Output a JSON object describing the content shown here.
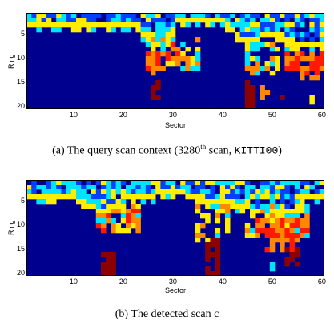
{
  "chart_data": [
    {
      "type": "heatmap",
      "xlabel": "Sector",
      "ylabel": "Ring",
      "xticks": [
        10,
        20,
        30,
        40,
        50,
        60
      ],
      "yticks": [
        5,
        10,
        15,
        20
      ],
      "xlim": [
        1,
        60
      ],
      "ylim": [
        1,
        20
      ],
      "colormap": "jet",
      "grid": false,
      "description": "Query scan context: yellow band near rings 2-5 with dips, red/orange blocks near sectors 26, 44, 55-60"
    },
    {
      "type": "heatmap",
      "xlabel": "Sector",
      "ylabel": "Ring",
      "xticks": [
        10,
        20,
        30,
        40,
        50,
        60
      ],
      "yticks": [
        5,
        10,
        15,
        20
      ],
      "xlim": [
        1,
        60
      ],
      "ylim": [
        1,
        20
      ],
      "colormap": "jet",
      "grid": false
    }
  ],
  "captions": {
    "a_prefix": "(a) The query scan context (3280",
    "a_sup": "th",
    "a_mid": " scan, ",
    "a_code": "KITTI00",
    "a_suffix": ")",
    "b_text": "(b) The detected scan c"
  },
  "colors": {
    "deep": "#00008f",
    "blue": "#0040ff",
    "cyan": "#00e5ff",
    "yellow": "#ffee00",
    "orange": "#ff8800",
    "red": "#ff1a00",
    "darkred": "#8b0000"
  }
}
